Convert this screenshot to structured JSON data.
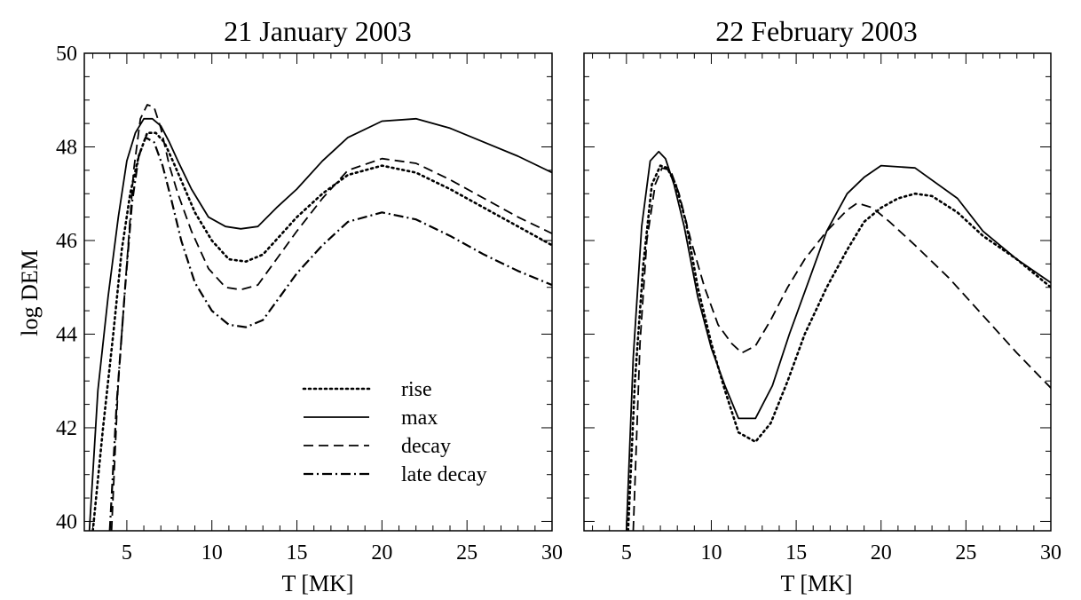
{
  "chart_data": [
    {
      "type": "line",
      "title": "21 January 2003",
      "xlabel": "T [MK]",
      "ylabel": "log DEM",
      "xlim": [
        2.5,
        30
      ],
      "ylim": [
        39.8,
        50
      ],
      "xticks": [
        "5",
        "10",
        "15",
        "20",
        "25",
        "30"
      ],
      "yticks": [
        "40",
        "42",
        "44",
        "46",
        "48",
        "50"
      ],
      "legend": "bottom-center",
      "series": [
        {
          "name": "rise",
          "style": "dotted",
          "x": [
            3.0,
            3.6,
            4.2,
            4.7,
            5.2,
            5.7,
            6.2,
            6.7,
            7.2,
            7.7,
            8.3,
            9.0,
            10.0,
            11.0,
            12.0,
            13.0,
            14.0,
            15.0,
            16.5,
            18.0,
            20.0,
            22.0,
            24.0,
            26.0,
            28.0,
            30.0
          ],
          "y": [
            39.8,
            42.0,
            44.0,
            45.8,
            47.0,
            47.8,
            48.3,
            48.3,
            48.1,
            47.7,
            47.2,
            46.6,
            46.0,
            45.6,
            45.55,
            45.7,
            46.1,
            46.5,
            47.0,
            47.4,
            47.6,
            47.45,
            47.1,
            46.7,
            46.3,
            45.9
          ]
        },
        {
          "name": "max",
          "style": "solid",
          "x": [
            2.8,
            3.3,
            3.9,
            4.5,
            5.0,
            5.5,
            6.0,
            6.5,
            7.0,
            7.5,
            8.0,
            8.8,
            9.8,
            10.8,
            11.7,
            12.7,
            13.8,
            15.0,
            16.5,
            18.0,
            20.0,
            22.0,
            24.0,
            26.0,
            28.0,
            30.0
          ],
          "y": [
            39.8,
            42.8,
            44.8,
            46.5,
            47.7,
            48.3,
            48.6,
            48.6,
            48.45,
            48.1,
            47.7,
            47.1,
            46.5,
            46.3,
            46.25,
            46.3,
            46.7,
            47.1,
            47.7,
            48.2,
            48.55,
            48.6,
            48.4,
            48.1,
            47.8,
            47.45
          ]
        },
        {
          "name": "decay",
          "style": "dashed",
          "x": [
            4.1,
            4.5,
            5.0,
            5.4,
            5.8,
            6.2,
            6.6,
            7.0,
            7.5,
            8.0,
            8.8,
            9.8,
            10.8,
            11.7,
            12.7,
            13.8,
            15.0,
            16.5,
            18.0,
            20.0,
            22.0,
            24.0,
            26.0,
            28.0,
            30.0
          ],
          "y": [
            39.8,
            43.0,
            45.5,
            47.5,
            48.6,
            48.9,
            48.85,
            48.4,
            47.6,
            47.0,
            46.2,
            45.4,
            45.0,
            44.95,
            45.05,
            45.6,
            46.2,
            46.9,
            47.5,
            47.75,
            47.65,
            47.3,
            46.9,
            46.5,
            46.15
          ]
        },
        {
          "name": "late decay",
          "style": "dashdot",
          "x": [
            4.0,
            4.4,
            4.9,
            5.3,
            5.7,
            6.1,
            6.6,
            7.1,
            7.6,
            8.2,
            9.0,
            10.0,
            11.0,
            12.0,
            13.0,
            14.0,
            15.0,
            16.5,
            18.0,
            20.0,
            22.0,
            24.0,
            26.0,
            28.0,
            30.0
          ],
          "y": [
            39.8,
            42.5,
            45.0,
            46.8,
            47.8,
            48.2,
            48.1,
            47.6,
            46.9,
            46.0,
            45.1,
            44.5,
            44.2,
            44.15,
            44.3,
            44.8,
            45.3,
            45.9,
            46.4,
            46.6,
            46.45,
            46.1,
            45.7,
            45.35,
            45.05
          ]
        }
      ]
    },
    {
      "type": "line",
      "title": "22 February 2003",
      "xlabel": "T [MK]",
      "ylabel": "",
      "xlim": [
        2.5,
        30
      ],
      "ylim": [
        39.8,
        50
      ],
      "xticks": [
        "5",
        "10",
        "15",
        "20",
        "25",
        "30"
      ],
      "yticks": [],
      "series": [
        {
          "name": "rise",
          "style": "dotted",
          "x": [
            5.1,
            5.5,
            6.0,
            6.5,
            7.0,
            7.4,
            7.9,
            8.5,
            9.2,
            10.0,
            10.8,
            11.6,
            12.6,
            13.5,
            14.5,
            15.5,
            16.8,
            18.0,
            19.0,
            20.0,
            21.0,
            22.0,
            23.0,
            24.5,
            26.0,
            28.0,
            30.0
          ],
          "y": [
            39.8,
            43.0,
            45.5,
            47.2,
            47.6,
            47.55,
            47.2,
            46.4,
            45.0,
            43.8,
            42.8,
            41.9,
            41.7,
            42.1,
            43.0,
            44.0,
            45.0,
            45.8,
            46.4,
            46.7,
            46.9,
            47.0,
            46.95,
            46.6,
            46.1,
            45.6,
            45.0
          ]
        },
        {
          "name": "max",
          "style": "solid",
          "x": [
            5.0,
            5.4,
            5.9,
            6.4,
            6.9,
            7.3,
            7.8,
            8.4,
            9.2,
            10.0,
            10.8,
            11.6,
            12.6,
            13.6,
            14.6,
            15.6,
            16.8,
            18.0,
            19.0,
            20.0,
            22.0,
            24.5,
            26.0,
            28.0,
            30.0
          ],
          "y": [
            39.8,
            43.5,
            46.3,
            47.7,
            47.9,
            47.75,
            47.2,
            46.3,
            44.8,
            43.7,
            42.9,
            42.2,
            42.2,
            42.9,
            44.0,
            45.0,
            46.2,
            47.0,
            47.35,
            47.6,
            47.55,
            46.9,
            46.2,
            45.6,
            45.1
          ]
        },
        {
          "name": "decay",
          "style": "dashed",
          "x": [
            5.4,
            5.8,
            6.2,
            6.7,
            7.1,
            7.6,
            8.1,
            8.8,
            9.6,
            10.4,
            11.2,
            11.8,
            12.6,
            13.5,
            14.5,
            15.5,
            16.8,
            18.0,
            18.6,
            19.5,
            20.5,
            22.0,
            24.0,
            26.0,
            28.0,
            30.0
          ],
          "y": [
            39.8,
            43.8,
            46.0,
            47.2,
            47.55,
            47.5,
            47.0,
            46.0,
            45.0,
            44.2,
            43.8,
            43.6,
            43.75,
            44.3,
            45.0,
            45.6,
            46.2,
            46.65,
            46.8,
            46.7,
            46.4,
            45.9,
            45.2,
            44.4,
            43.6,
            42.85
          ]
        }
      ]
    }
  ]
}
